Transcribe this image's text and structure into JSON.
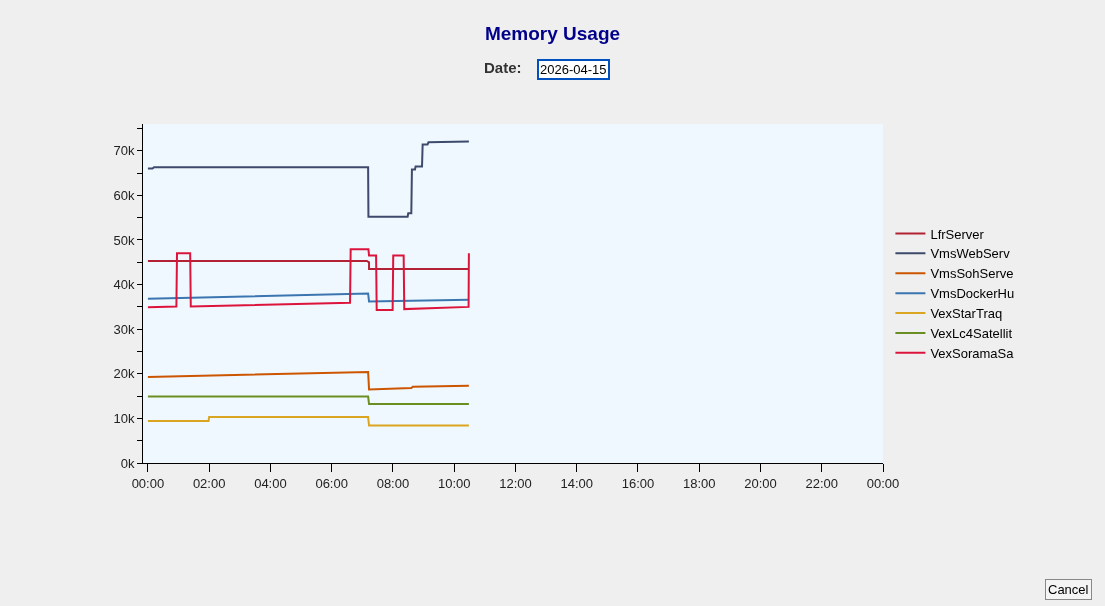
{
  "chart_data": {
    "type": "line",
    "title": "Memory Usage",
    "annotations": [
      "Date:",
      "2026-04-15",
      "Cancel"
    ],
    "xlim": [
      -0.16,
      24
    ],
    "xticks": [
      {
        "value": 0,
        "label": "00:00"
      },
      {
        "value": 2,
        "label": "02:00"
      },
      {
        "value": 4,
        "label": "04:00"
      },
      {
        "value": 6,
        "label": "06:00"
      },
      {
        "value": 8,
        "label": "08:00"
      },
      {
        "value": 10,
        "label": "10:00"
      },
      {
        "value": 12,
        "label": "12:00"
      },
      {
        "value": 14,
        "label": "14:00"
      },
      {
        "value": 16,
        "label": "16:00"
      },
      {
        "value": 18,
        "label": "18:00"
      },
      {
        "value": 20,
        "label": "20:00"
      },
      {
        "value": 22,
        "label": "22:00"
      },
      {
        "value": 24,
        "label": "00:00"
      }
    ],
    "ylim": [
      0,
      76000
    ],
    "yticks": [
      {
        "value": 0,
        "label": "0k"
      },
      {
        "value": 5000,
        "label": null
      },
      {
        "value": 10000,
        "label": "10k"
      },
      {
        "value": 15000,
        "label": null
      },
      {
        "value": 20000,
        "label": "20k"
      },
      {
        "value": 25000,
        "label": null
      },
      {
        "value": 30000,
        "label": "30k"
      },
      {
        "value": 35000,
        "label": null
      },
      {
        "value": 40000,
        "label": "40k"
      },
      {
        "value": 45000,
        "label": null
      },
      {
        "value": 50000,
        "label": "50k"
      },
      {
        "value": 55000,
        "label": null
      },
      {
        "value": 60000,
        "label": "60k"
      },
      {
        "value": 65000,
        "label": null
      },
      {
        "value": 70000,
        "label": "70k"
      },
      {
        "value": 75000,
        "label": null
      }
    ],
    "grid": false,
    "legend": "right",
    "marker": "none",
    "line_style": "solid",
    "series": [
      {
        "name": "LfrServer",
        "color": "#b22234",
        "x": [
          0,
          7.15,
          7.22,
          7.22,
          10.48
        ],
        "values": [
          45300,
          45300,
          45000,
          43500,
          43500
        ]
      },
      {
        "name": "VmsWebServ",
        "color": "#3d4a6b",
        "x": [
          0,
          0.15,
          0.2,
          7.19,
          7.2,
          8.48,
          8.5,
          8.6,
          8.62,
          8.72,
          8.74,
          8.95,
          8.97,
          9.13,
          9.16,
          10.48
        ],
        "values": [
          66000,
          66000,
          66300,
          66300,
          55200,
          55200,
          56000,
          56000,
          65800,
          65800,
          66500,
          66500,
          71400,
          71400,
          71900,
          72100
        ]
      },
      {
        "name": "VmsSohServe",
        "color": "#cc5500",
        "x": [
          0,
          7.19,
          7.22,
          8.6,
          8.65,
          10.48
        ],
        "values": [
          19300,
          20400,
          16500,
          16800,
          17100,
          17300
        ]
      },
      {
        "name": "VmsDockerHu",
        "color": "#3a75b0",
        "x": [
          0,
          7.19,
          7.22,
          10.48
        ],
        "values": [
          36800,
          38000,
          36200,
          36600
        ]
      },
      {
        "name": "VexStarTraq",
        "color": "#daa520",
        "x": [
          0,
          1.98,
          2.0,
          7.19,
          7.22,
          10.48
        ],
        "values": [
          9400,
          9400,
          10300,
          10300,
          8400,
          8400
        ]
      },
      {
        "name": "VexLc4Satellit",
        "color": "#6b8e23",
        "x": [
          0,
          7.19,
          7.22,
          10.48
        ],
        "values": [
          14900,
          14900,
          13200,
          13200
        ]
      },
      {
        "name": "VexSoramaSa",
        "color": "#dc143c",
        "x": [
          0,
          0.93,
          0.95,
          1.38,
          1.4,
          6.6,
          6.62,
          7.2,
          7.22,
          7.45,
          7.47,
          7.99,
          8.01,
          8.35,
          8.37,
          10.47,
          10.48
        ],
        "values": [
          34900,
          35100,
          47000,
          47000,
          35100,
          35900,
          47900,
          47900,
          46500,
          46500,
          34300,
          34300,
          46500,
          46500,
          34500,
          35000,
          47000
        ]
      }
    ]
  }
}
